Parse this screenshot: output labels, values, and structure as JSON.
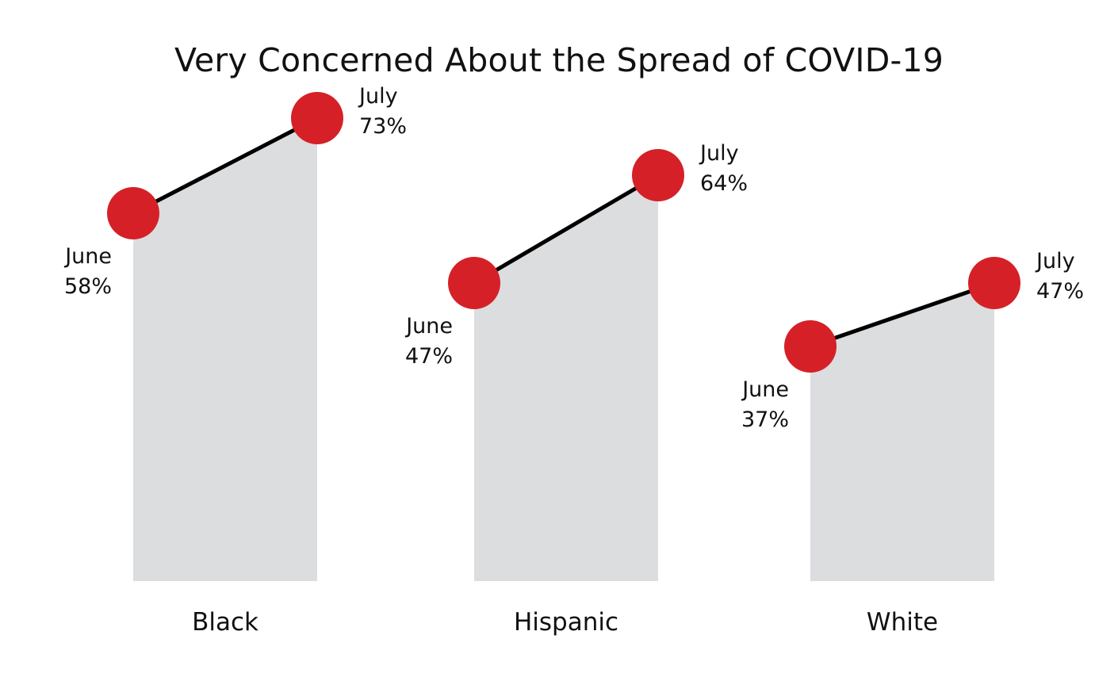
{
  "title": "Very Concerned About the Spread of COVID-19",
  "colors": {
    "point": "#d62028",
    "area": "#dcdddf",
    "line": "#000000"
  },
  "chart_data": {
    "type": "area",
    "title": "Very Concerned About the Spread of COVID-19",
    "ylim": [
      0,
      100
    ],
    "grid": false,
    "groups": [
      {
        "name": "Black",
        "points": [
          {
            "month": "June",
            "label": "58%",
            "value": 58
          },
          {
            "month": "July",
            "label": "73%",
            "value": 73
          }
        ]
      },
      {
        "name": "Hispanic",
        "points": [
          {
            "month": "June",
            "label": "47%",
            "value": 47
          },
          {
            "month": "July",
            "label": "64%",
            "value": 64
          }
        ]
      },
      {
        "name": "White",
        "points": [
          {
            "month": "June",
            "label": "37%",
            "value": 37
          },
          {
            "month": "July",
            "label": "47%",
            "value": 47
          }
        ]
      }
    ]
  }
}
